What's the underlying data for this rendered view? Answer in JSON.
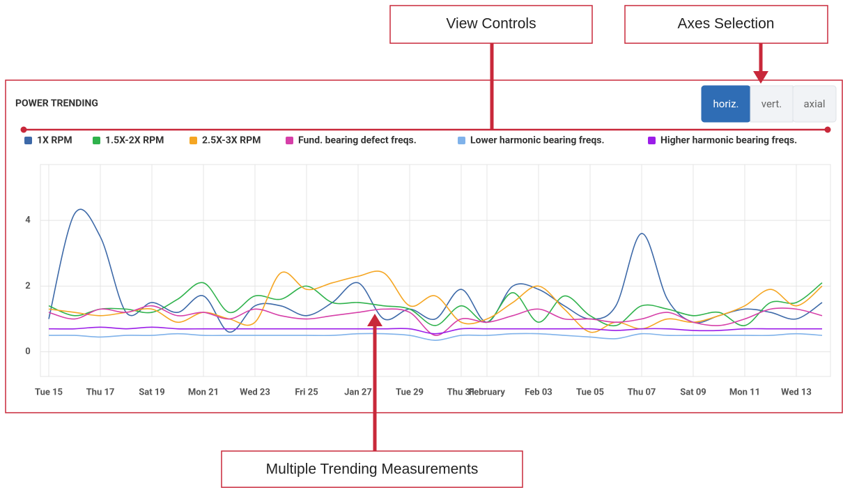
{
  "chart_data": {
    "type": "line",
    "title": "POWER TRENDING",
    "buttons": [
      "horiz.",
      "vert.",
      "axial"
    ],
    "active_button": 0,
    "annotations": [
      "View Controls",
      "Axes Selection",
      "Multiple Trending Measurements"
    ],
    "categories": [
      "Tue 15",
      null,
      "Thu 17",
      null,
      "Sat 19",
      null,
      "Mon 21",
      null,
      "Wed 23",
      null,
      "Fri 25",
      null,
      "Jan 27",
      null,
      "Tue 29",
      null,
      "Thu 31",
      "February",
      null,
      "Feb 03",
      null,
      "Tue 05",
      null,
      "Thu 07",
      null,
      "Sat 09",
      null,
      "Mon 11",
      null,
      "Wed 13",
      null
    ],
    "ylim": [
      -0.75,
      5.7
    ],
    "yticks": [
      0,
      2,
      4
    ],
    "grid": true,
    "series": [
      {
        "name": "1X RPM",
        "color": "#3d69a8",
        "values": [
          1.0,
          4.2,
          3.5,
          1.2,
          1.5,
          1.2,
          1.7,
          0.6,
          1.4,
          1.4,
          1.1,
          1.5,
          2.1,
          1.0,
          1.3,
          1.0,
          1.9,
          0.9,
          2.0,
          1.9,
          1.4,
          1.0,
          1.4,
          3.6,
          1.6,
          0.9,
          1.1,
          1.3,
          1.2,
          1.0,
          1.5
        ]
      },
      {
        "name": "1.5X-2X RPM",
        "color": "#2fb24c",
        "values": [
          1.4,
          1.1,
          1.3,
          1.3,
          1.2,
          1.6,
          2.1,
          1.2,
          1.7,
          1.6,
          2.0,
          1.5,
          1.5,
          1.4,
          1.3,
          0.8,
          1.4,
          0.9,
          1.8,
          0.9,
          1.7,
          1.1,
          0.8,
          1.4,
          1.3,
          1.1,
          1.2,
          0.8,
          1.5,
          1.5,
          2.1
        ]
      },
      {
        "name": "2.5X-3X RPM",
        "color": "#f5a623",
        "values": [
          1.3,
          1.2,
          1.1,
          1.2,
          1.3,
          0.9,
          1.2,
          1.0,
          0.9,
          2.4,
          1.9,
          2.1,
          2.3,
          2.4,
          1.4,
          1.7,
          0.9,
          1.0,
          1.5,
          2.0,
          1.3,
          0.6,
          0.9,
          0.7,
          1.0,
          0.9,
          1.1,
          1.4,
          1.9,
          1.4,
          2.0
        ]
      },
      {
        "name": "Fund. bearing defect freqs.",
        "color": "#d63fa8",
        "values": [
          1.2,
          1.0,
          1.3,
          1.2,
          1.4,
          1.1,
          1.2,
          1.0,
          1.3,
          1.1,
          1.0,
          1.1,
          1.2,
          1.3,
          1.2,
          0.5,
          1.0,
          0.9,
          1.1,
          1.3,
          1.0,
          1.0,
          0.9,
          1.0,
          1.2,
          0.9,
          0.8,
          1.0,
          1.3,
          1.3,
          1.1
        ]
      },
      {
        "name": "Lower harmonic bearing freqs.",
        "color": "#7fb2ea",
        "values": [
          0.5,
          0.5,
          0.45,
          0.5,
          0.5,
          0.55,
          0.5,
          0.5,
          0.5,
          0.5,
          0.5,
          0.5,
          0.55,
          0.55,
          0.5,
          0.35,
          0.5,
          0.5,
          0.55,
          0.55,
          0.5,
          0.45,
          0.4,
          0.55,
          0.5,
          0.5,
          0.5,
          0.5,
          0.5,
          0.55,
          0.5
        ]
      },
      {
        "name": "Higher harmonic bearing freqs.",
        "color": "#9b1de8",
        "values": [
          0.7,
          0.7,
          0.75,
          0.7,
          0.75,
          0.7,
          0.7,
          0.7,
          0.7,
          0.7,
          0.7,
          0.7,
          0.7,
          0.7,
          0.7,
          0.55,
          0.7,
          0.7,
          0.7,
          0.7,
          0.7,
          0.7,
          0.65,
          0.7,
          0.7,
          0.65,
          0.65,
          0.7,
          0.7,
          0.7,
          0.7
        ]
      }
    ]
  }
}
